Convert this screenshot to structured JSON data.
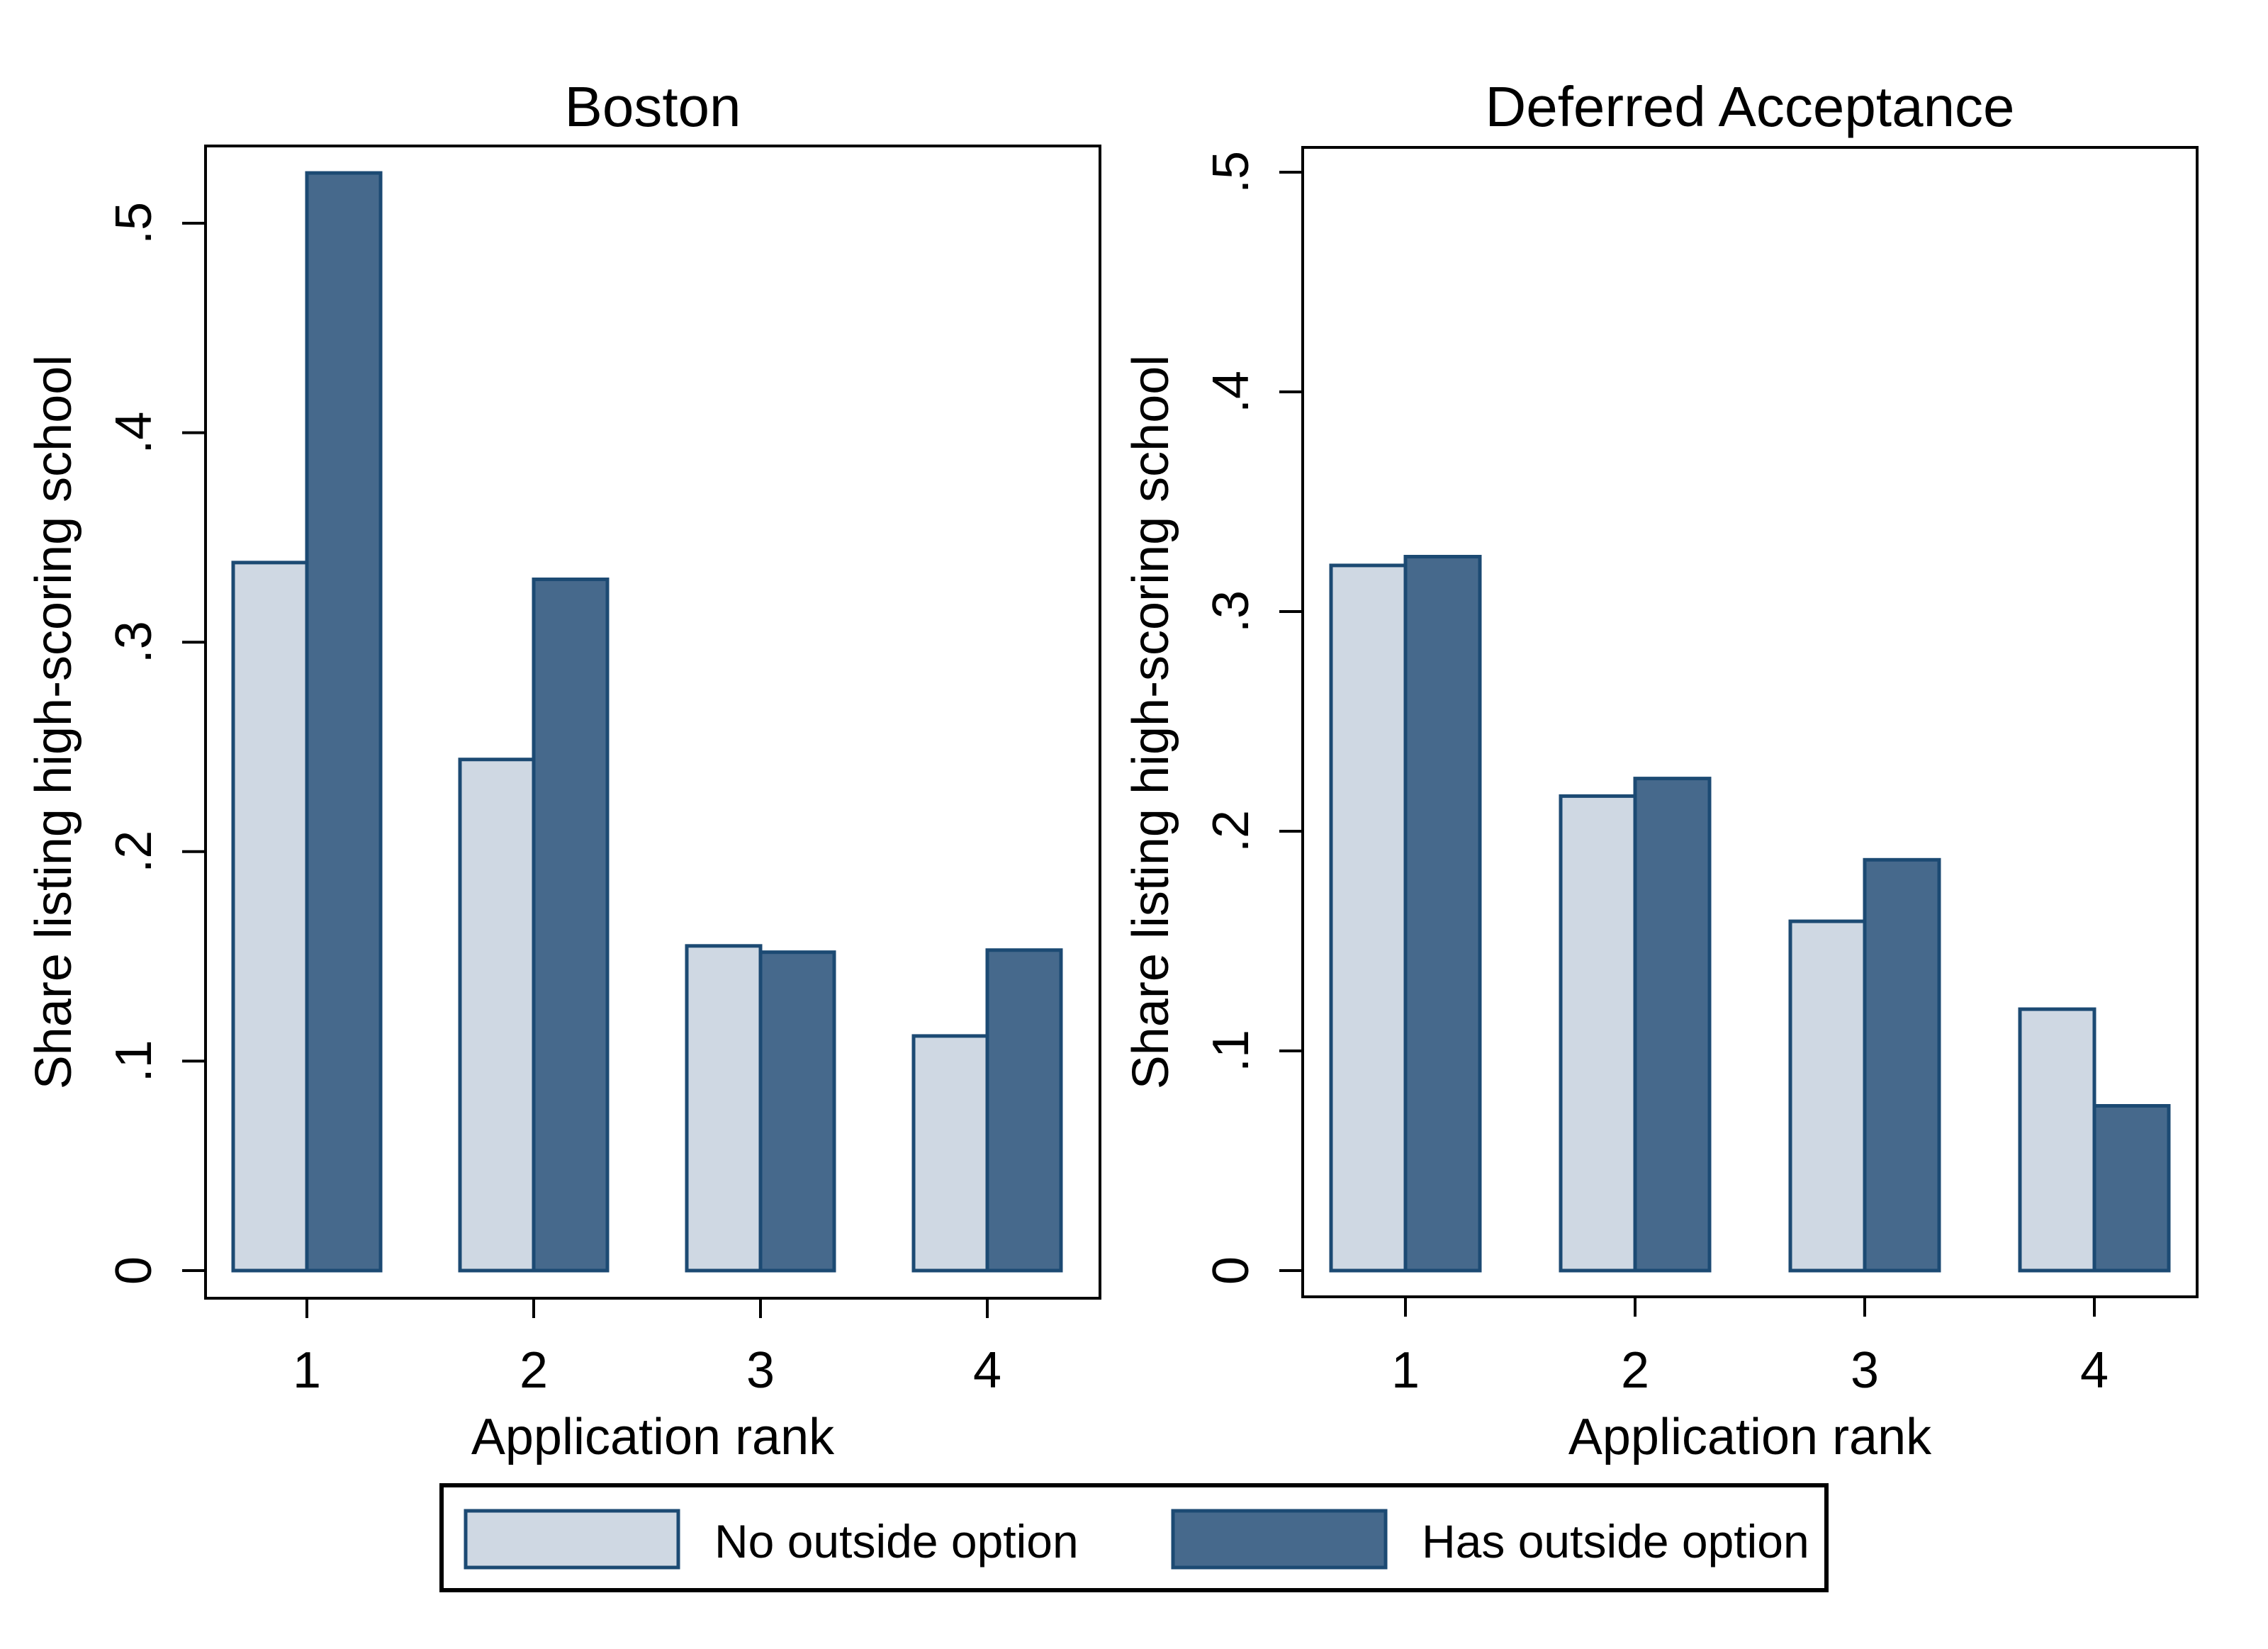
{
  "figure": {
    "background": "#ffffff"
  },
  "colors": {
    "no_outside": "#cfd8e3",
    "has_outside": "#46698c",
    "bar_border": "#1c4a73",
    "axis": "#000000"
  },
  "legend": {
    "items": [
      {
        "label": "No outside option",
        "key": "no_outside"
      },
      {
        "label": "Has outside option",
        "key": "has_outside"
      }
    ]
  },
  "chart_data": [
    {
      "type": "bar",
      "panel": "left",
      "title": "Boston",
      "xlabel": "Application rank",
      "ylabel": "Share listing high-scoring school",
      "categories": [
        "1",
        "2",
        "3",
        "4"
      ],
      "series": [
        {
          "name": "No outside option",
          "values": [
            0.338,
            0.244,
            0.155,
            0.112
          ]
        },
        {
          "name": "Has outside option",
          "values": [
            0.524,
            0.33,
            0.152,
            0.153
          ]
        }
      ],
      "yticks": [
        {
          "v": 0.0,
          "label": "0"
        },
        {
          "v": 0.1,
          "label": ".1"
        },
        {
          "v": 0.2,
          "label": ".2"
        },
        {
          "v": 0.3,
          "label": ".3"
        },
        {
          "v": 0.4,
          "label": ".4"
        },
        {
          "v": 0.5,
          "label": ".5"
        }
      ],
      "ylim": [
        0,
        0.537
      ],
      "grid": false,
      "legend_position": "bottom"
    },
    {
      "type": "bar",
      "panel": "right",
      "title": "Deferred Acceptance",
      "xlabel": "Application rank",
      "ylabel": "Share listing high-scoring school",
      "categories": [
        "1",
        "2",
        "3",
        "4"
      ],
      "series": [
        {
          "name": "No outside option",
          "values": [
            0.321,
            0.216,
            0.159,
            0.119
          ]
        },
        {
          "name": "Has outside option",
          "values": [
            0.325,
            0.224,
            0.187,
            0.075
          ]
        }
      ],
      "yticks": [
        {
          "v": 0.0,
          "label": "0"
        },
        {
          "v": 0.1,
          "label": ".1"
        },
        {
          "v": 0.2,
          "label": ".2"
        },
        {
          "v": 0.3,
          "label": ".3"
        },
        {
          "v": 0.4,
          "label": ".4"
        },
        {
          "v": 0.5,
          "label": ".5"
        }
      ],
      "ylim": [
        0,
        0.511
      ],
      "grid": false,
      "legend_position": "bottom"
    }
  ]
}
